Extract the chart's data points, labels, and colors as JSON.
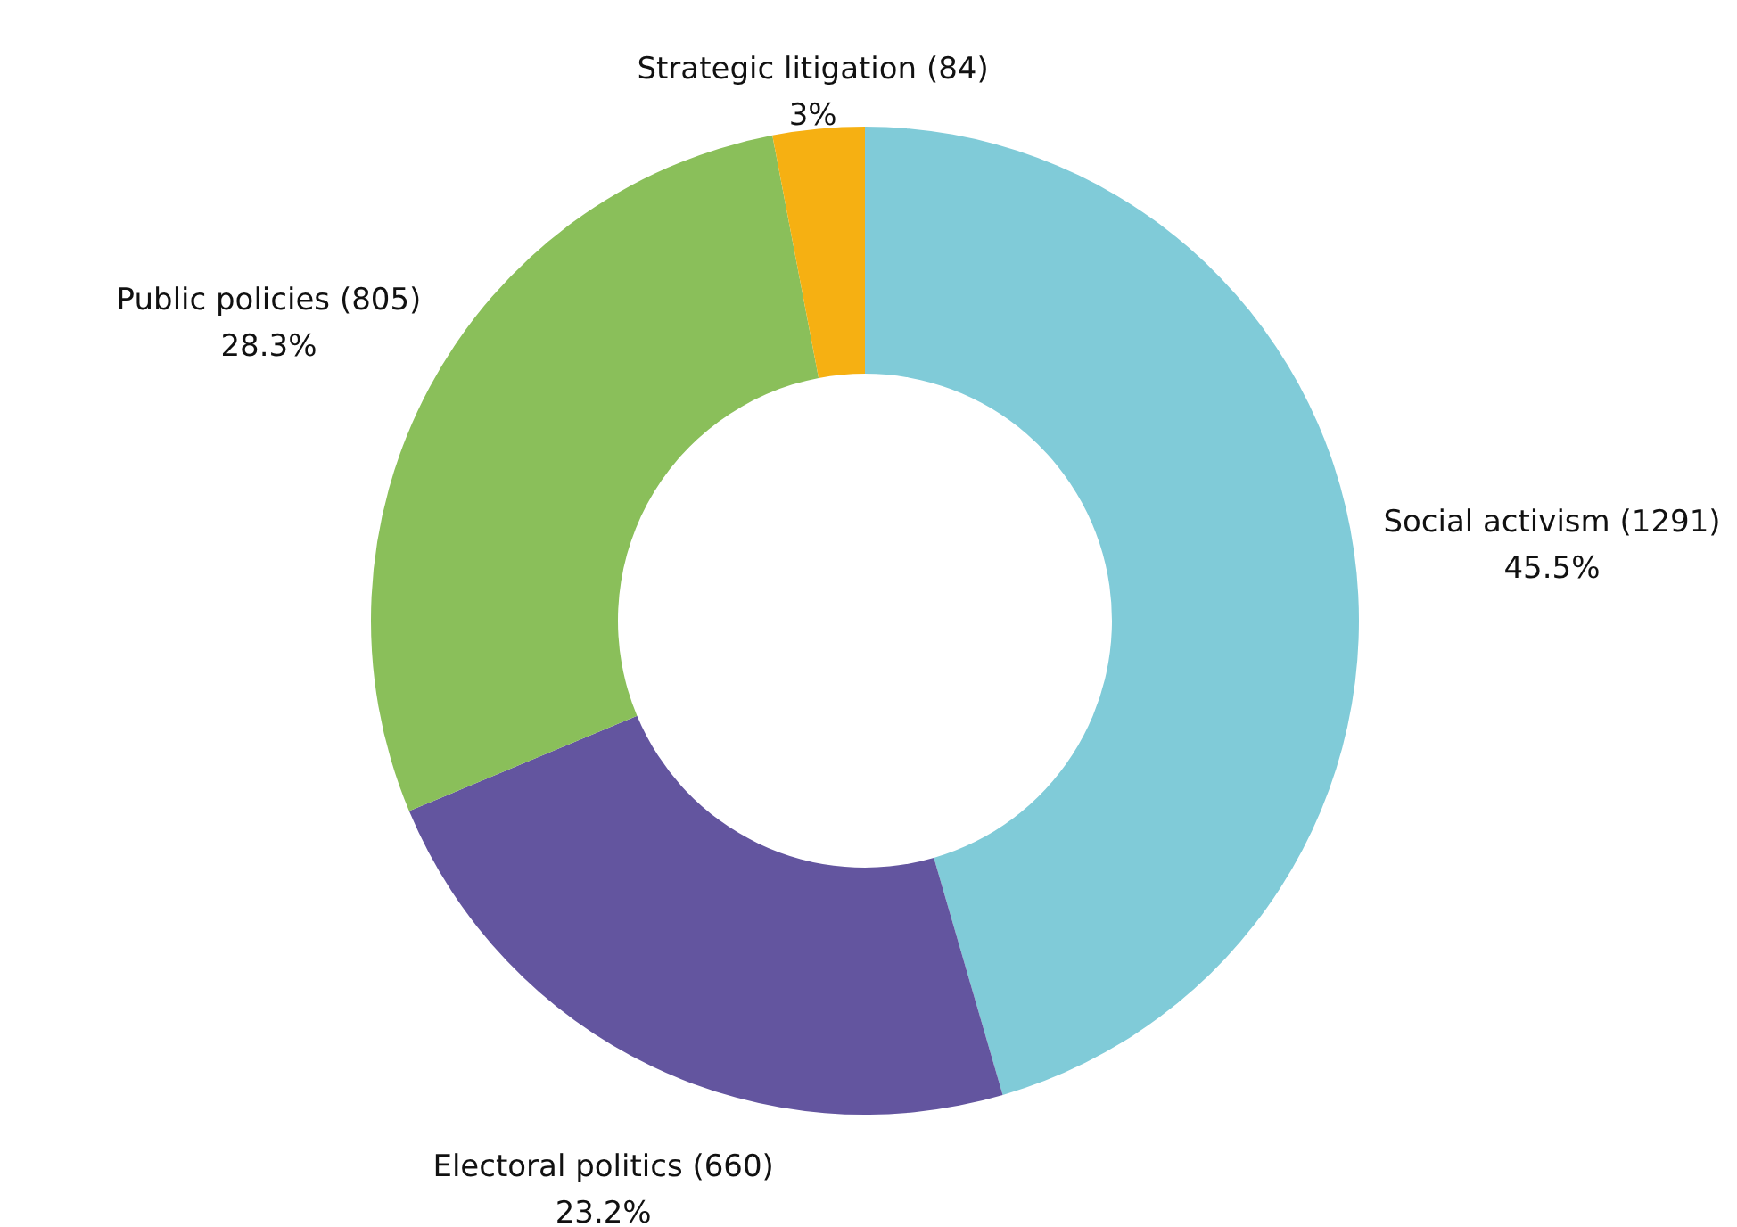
{
  "chart_data": {
    "type": "donut",
    "categories": [
      "Social activism (1291)",
      "Electoral politics (660)",
      "Public policies (805)",
      "Strategic litigation (84)"
    ],
    "values": [
      45.5,
      23.2,
      28.3,
      3
    ],
    "value_labels": [
      "45.5%",
      "23.2%",
      "28.3%",
      "3%"
    ],
    "colors": [
      "#80cbd8",
      "#63559f",
      "#8abf5a",
      "#f6b012"
    ]
  }
}
